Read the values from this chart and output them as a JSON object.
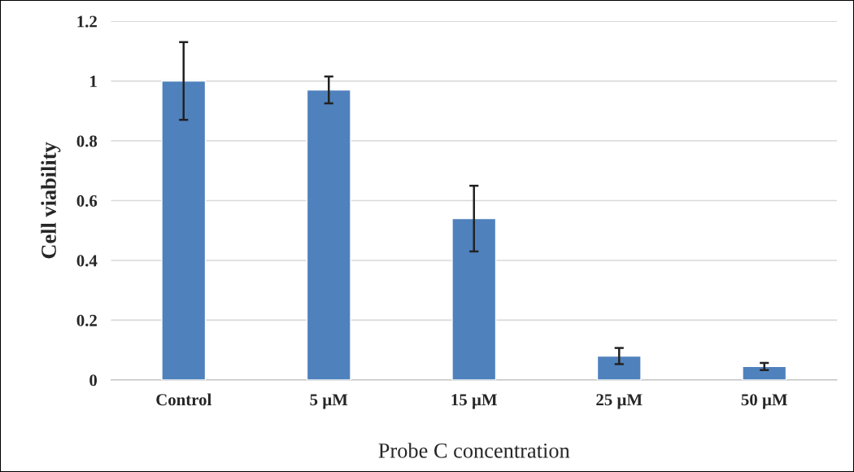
{
  "chart_data": {
    "type": "bar",
    "xlabel": "Probe C concentration",
    "ylabel": "Cell viability",
    "categories": [
      "Control",
      "5 µM",
      "15 µM",
      "25 µM",
      "50 µM"
    ],
    "values": [
      1.0,
      0.97,
      0.54,
      0.08,
      0.045
    ],
    "errors": [
      0.13,
      0.045,
      0.11,
      0.027,
      0.012
    ],
    "color": "#4f81bd",
    "ylim": [
      0,
      1.2
    ],
    "yticks": [
      {
        "value": 0,
        "label": "0"
      },
      0.2,
      0.4,
      0.6,
      0.8,
      {
        "value": 1,
        "label": "1"
      },
      1.2
    ],
    "grid": "y",
    "legend": false
  }
}
